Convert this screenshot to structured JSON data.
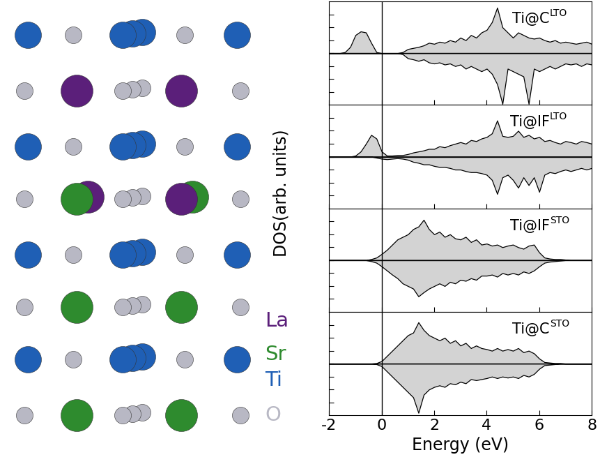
{
  "ylabel": "DOS(arb. units)",
  "structure": {
    "legend": [
      {
        "label": "La",
        "color": "#5b1f7a"
      },
      {
        "label": "Sr",
        "color": "#2e8b2e"
      },
      {
        "label": "Ti",
        "color": "#1f5fb5"
      },
      {
        "label": "O",
        "color": "#b8b8c4"
      }
    ]
  },
  "chart_data": [
    {
      "type": "area",
      "title": "Ti@C",
      "title_superscript": "LTO",
      "color": "#d3d3d3",
      "tick_labels": false,
      "xlim": [
        -2,
        8
      ],
      "xticks": [
        -2,
        0,
        2,
        4,
        6,
        8
      ],
      "ylim": [
        -1,
        1
      ],
      "yticks": [
        -0.75,
        -0.5,
        -0.25,
        0,
        0.25,
        0.5,
        0.75
      ],
      "x": [
        -2.0,
        -1.8,
        -1.6,
        -1.4,
        -1.2,
        -1.0,
        -0.8,
        -0.6,
        -0.4,
        -0.2,
        0.0,
        0.2,
        0.4,
        0.6,
        0.8,
        1.0,
        1.2,
        1.4,
        1.6,
        1.8,
        2.0,
        2.2,
        2.4,
        2.6,
        2.8,
        3.0,
        3.2,
        3.4,
        3.6,
        3.8,
        4.0,
        4.2,
        4.4,
        4.6,
        4.8,
        5.0,
        5.2,
        5.4,
        5.6,
        5.8,
        6.0,
        6.2,
        6.4,
        6.6,
        6.8,
        7.0,
        7.2,
        7.4,
        7.6,
        7.8,
        8.0
      ],
      "series": [
        {
          "values": [
            0,
            0,
            0,
            0.02,
            0.12,
            0.35,
            0.42,
            0.4,
            0.2,
            0.02,
            0,
            0,
            0,
            0,
            0.02,
            0.08,
            0.1,
            0.12,
            0.15,
            0.2,
            0.18,
            0.22,
            0.2,
            0.25,
            0.22,
            0.3,
            0.25,
            0.35,
            0.3,
            0.4,
            0.45,
            0.6,
            0.88,
            0.5,
            0.4,
            0.3,
            0.4,
            0.35,
            0.3,
            0.28,
            0.3,
            0.25,
            0.22,
            0.25,
            0.2,
            0.22,
            0.2,
            0.18,
            0.2,
            0.22,
            0.18
          ]
        },
        {
          "values": [
            0,
            0,
            0,
            0,
            0,
            0,
            0,
            0,
            0,
            0,
            0,
            0,
            0,
            0,
            -0.02,
            -0.1,
            -0.12,
            -0.15,
            -0.12,
            -0.18,
            -0.2,
            -0.18,
            -0.22,
            -0.2,
            -0.25,
            -0.22,
            -0.3,
            -0.25,
            -0.3,
            -0.35,
            -0.3,
            -0.4,
            -0.6,
            -0.98,
            -0.3,
            -0.35,
            -0.4,
            -0.45,
            -0.98,
            -0.3,
            -0.35,
            -0.3,
            -0.25,
            -0.3,
            -0.25,
            -0.2,
            -0.22,
            -0.2,
            -0.25,
            -0.2,
            -0.22
          ]
        }
      ]
    },
    {
      "type": "area",
      "title": "Ti@IF",
      "title_superscript": "LTO",
      "color": "#d3d3d3",
      "tick_labels": false,
      "xlim": [
        -2,
        8
      ],
      "xticks": [
        -2,
        0,
        2,
        4,
        6,
        8
      ],
      "ylim": [
        -1,
        1
      ],
      "yticks": [
        -0.75,
        -0.5,
        -0.25,
        0,
        0.25,
        0.5,
        0.75
      ],
      "x": [
        -2.0,
        -1.8,
        -1.6,
        -1.4,
        -1.2,
        -1.0,
        -0.8,
        -0.6,
        -0.4,
        -0.2,
        0.0,
        0.2,
        0.4,
        0.6,
        0.8,
        1.0,
        1.2,
        1.4,
        1.6,
        1.8,
        2.0,
        2.2,
        2.4,
        2.6,
        2.8,
        3.0,
        3.2,
        3.4,
        3.6,
        3.8,
        4.0,
        4.2,
        4.4,
        4.6,
        4.8,
        5.0,
        5.2,
        5.4,
        5.6,
        5.8,
        6.0,
        6.2,
        6.4,
        6.6,
        6.8,
        7.0,
        7.2,
        7.4,
        7.6,
        7.8,
        8.0
      ],
      "series": [
        {
          "values": [
            0,
            0,
            0,
            0,
            0,
            0.02,
            0.1,
            0.25,
            0.42,
            0.35,
            0.1,
            0.02,
            0.02,
            0.03,
            0.03,
            0.05,
            0.08,
            0.1,
            0.12,
            0.15,
            0.15,
            0.2,
            0.18,
            0.22,
            0.25,
            0.28,
            0.25,
            0.32,
            0.3,
            0.35,
            0.38,
            0.45,
            0.7,
            0.4,
            0.38,
            0.4,
            0.5,
            0.38,
            0.42,
            0.35,
            0.38,
            0.3,
            0.32,
            0.28,
            0.25,
            0.3,
            0.28,
            0.25,
            0.3,
            0.28,
            0.25
          ]
        },
        {
          "values": [
            0,
            0,
            0,
            0,
            0,
            0,
            0,
            0,
            0,
            -0.02,
            -0.04,
            -0.05,
            -0.04,
            -0.03,
            -0.04,
            -0.06,
            -0.1,
            -0.12,
            -0.15,
            -0.15,
            -0.18,
            -0.2,
            -0.2,
            -0.22,
            -0.25,
            -0.25,
            -0.28,
            -0.3,
            -0.3,
            -0.32,
            -0.35,
            -0.45,
            -0.72,
            -0.4,
            -0.35,
            -0.45,
            -0.6,
            -0.4,
            -0.55,
            -0.4,
            -0.68,
            -0.35,
            -0.3,
            -0.32,
            -0.28,
            -0.25,
            -0.28,
            -0.25,
            -0.22,
            -0.25,
            -0.22
          ]
        }
      ]
    },
    {
      "type": "area",
      "title": "Ti@IF",
      "title_superscript": "STO",
      "color": "#d3d3d3",
      "tick_labels": false,
      "xlim": [
        -2,
        8
      ],
      "xticks": [
        -2,
        0,
        2,
        4,
        6,
        8
      ],
      "ylim": [
        -1,
        1
      ],
      "yticks": [
        -0.75,
        -0.5,
        -0.25,
        0,
        0.25,
        0.5,
        0.75
      ],
      "x": [
        -2.0,
        -1.8,
        -1.6,
        -1.4,
        -1.2,
        -1.0,
        -0.8,
        -0.6,
        -0.4,
        -0.2,
        0.0,
        0.2,
        0.4,
        0.6,
        0.8,
        1.0,
        1.2,
        1.4,
        1.6,
        1.8,
        2.0,
        2.2,
        2.4,
        2.6,
        2.8,
        3.0,
        3.2,
        3.4,
        3.6,
        3.8,
        4.0,
        4.2,
        4.4,
        4.6,
        4.8,
        5.0,
        5.2,
        5.4,
        5.6,
        5.8,
        6.0,
        6.2,
        6.4,
        6.6,
        6.8,
        7.0,
        7.2,
        7.4,
        7.6,
        7.8,
        8.0
      ],
      "series": [
        {
          "values": [
            0,
            0,
            0,
            0,
            0,
            0,
            0,
            0,
            0.02,
            0.05,
            0.12,
            0.2,
            0.3,
            0.4,
            0.45,
            0.5,
            0.6,
            0.65,
            0.78,
            0.6,
            0.5,
            0.55,
            0.45,
            0.5,
            0.42,
            0.4,
            0.45,
            0.35,
            0.4,
            0.3,
            0.32,
            0.28,
            0.3,
            0.25,
            0.28,
            0.3,
            0.25,
            0.22,
            0.28,
            0.3,
            0.15,
            0.05,
            0.03,
            0.02,
            0.02,
            0.01,
            0,
            0,
            0,
            0,
            0
          ]
        },
        {
          "values": [
            0,
            0,
            0,
            0,
            0,
            0,
            0,
            0,
            -0.02,
            -0.05,
            -0.12,
            -0.2,
            -0.28,
            -0.35,
            -0.45,
            -0.5,
            -0.55,
            -0.7,
            -0.62,
            -0.55,
            -0.5,
            -0.45,
            -0.5,
            -0.42,
            -0.45,
            -0.38,
            -0.4,
            -0.35,
            -0.38,
            -0.3,
            -0.3,
            -0.28,
            -0.32,
            -0.25,
            -0.28,
            -0.25,
            -0.28,
            -0.22,
            -0.25,
            -0.2,
            -0.12,
            -0.05,
            -0.03,
            -0.02,
            -0.01,
            0,
            0,
            0,
            0,
            0,
            0
          ]
        }
      ]
    },
    {
      "type": "area",
      "title": "Ti@C",
      "title_superscript": "STO",
      "color": "#d3d3d3",
      "tick_labels": "x",
      "xlabel": "Energy (eV)",
      "xlim": [
        -2,
        8
      ],
      "xticks": [
        -2,
        0,
        2,
        4,
        6,
        8
      ],
      "ylim": [
        -1,
        1
      ],
      "yticks": [
        -0.75,
        -0.5,
        -0.25,
        0,
        0.25,
        0.5,
        0.75
      ],
      "x": [
        -2.0,
        -1.8,
        -1.6,
        -1.4,
        -1.2,
        -1.0,
        -0.8,
        -0.6,
        -0.4,
        -0.2,
        0.0,
        0.2,
        0.4,
        0.6,
        0.8,
        1.0,
        1.2,
        1.4,
        1.6,
        1.8,
        2.0,
        2.2,
        2.4,
        2.6,
        2.8,
        3.0,
        3.2,
        3.4,
        3.6,
        3.8,
        4.0,
        4.2,
        4.4,
        4.6,
        4.8,
        5.0,
        5.2,
        5.4,
        5.6,
        5.8,
        6.0,
        6.2,
        6.4,
        6.6,
        6.8,
        7.0,
        7.2,
        7.4,
        7.6,
        7.8,
        8.0
      ],
      "series": [
        {
          "values": [
            0,
            0,
            0,
            0,
            0,
            0,
            0,
            0,
            0,
            0.01,
            0.05,
            0.15,
            0.25,
            0.35,
            0.45,
            0.55,
            0.6,
            0.8,
            0.65,
            0.55,
            0.5,
            0.45,
            0.5,
            0.4,
            0.45,
            0.35,
            0.4,
            0.3,
            0.35,
            0.3,
            0.28,
            0.25,
            0.3,
            0.25,
            0.28,
            0.25,
            0.3,
            0.22,
            0.25,
            0.2,
            0.1,
            0.03,
            0.02,
            0.01,
            0.01,
            0,
            0,
            0,
            0,
            0,
            0
          ]
        },
        {
          "values": [
            0,
            0,
            0,
            0,
            0,
            0,
            0,
            0,
            0,
            -0.01,
            -0.05,
            -0.15,
            -0.25,
            -0.35,
            -0.45,
            -0.55,
            -0.65,
            -0.95,
            -0.6,
            -0.5,
            -0.45,
            -0.42,
            -0.45,
            -0.38,
            -0.4,
            -0.35,
            -0.38,
            -0.3,
            -0.32,
            -0.3,
            -0.28,
            -0.25,
            -0.28,
            -0.25,
            -0.27,
            -0.25,
            -0.28,
            -0.22,
            -0.25,
            -0.2,
            -0.1,
            -0.03,
            -0.02,
            -0.01,
            0,
            0,
            0,
            0,
            0,
            0,
            0
          ]
        }
      ]
    }
  ]
}
